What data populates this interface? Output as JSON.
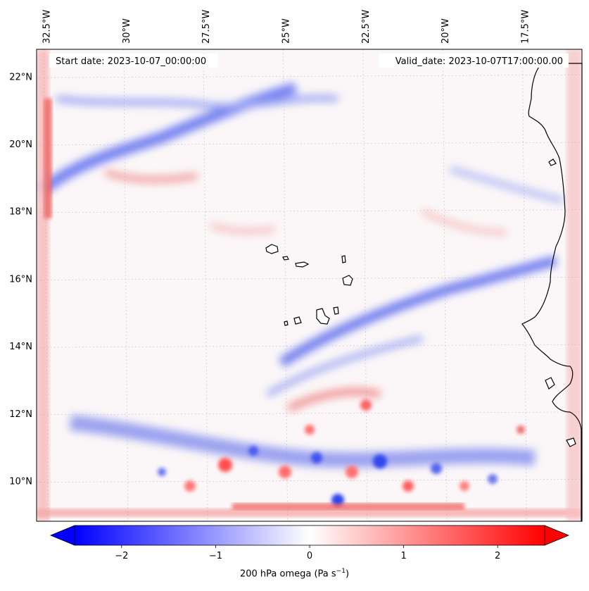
{
  "annotations": {
    "start_date": "Start date: 2023-10-07_00:00:00",
    "valid_date": "Valid_date: 2023-10-07T17:00:00.00"
  },
  "map": {
    "lon_range": [
      -32.8,
      -15.7
    ],
    "lat_range": [
      8.8,
      22.8
    ],
    "lon_ticks": [
      -32.5,
      -30,
      -27.5,
      -25,
      -22.5,
      -20,
      -17.5
    ],
    "lon_labels": [
      "32.5°W",
      "30°W",
      "27.5°W",
      "25°W",
      "22.5°W",
      "20°W",
      "17.5°W"
    ],
    "lat_ticks": [
      10,
      12,
      14,
      16,
      18,
      20,
      22
    ],
    "lat_labels": [
      "10°N",
      "12°N",
      "14°N",
      "16°N",
      "18°N",
      "20°N",
      "22°N"
    ],
    "gridlines": true,
    "field": "200 hPa omega",
    "features": [
      "African coastline",
      "Cape Verde islands"
    ]
  },
  "colorbar": {
    "ticks": [
      -2,
      -1,
      0,
      1,
      2
    ],
    "tick_labels": [
      "−2",
      "−1",
      "0",
      "1",
      "2"
    ],
    "range": [
      -2.5,
      2.5
    ],
    "colormap": "bwr",
    "low_color": "#0000ff",
    "mid_color": "#ffffff",
    "high_color": "#ff0000",
    "extend": "both",
    "label_main": "200 hPa omega (Pa s",
    "label_exp": "−1",
    "label_close": ")"
  }
}
